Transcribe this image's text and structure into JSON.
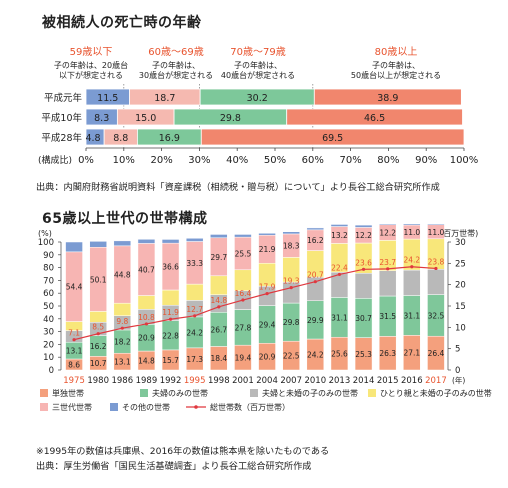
{
  "chart_data": [
    {
      "type": "bar",
      "stacked": "horizontal-100",
      "title": "被相続人の死亡時の年齢",
      "age_groups": [
        {
          "label": "59歳以下",
          "note1": "子の年齢は、20歳台",
          "note2": "以下が想定される",
          "color": "#7b9bd2"
        },
        {
          "label": "60歳～69歳",
          "note1": "子の年齢は、",
          "note2": "30歳台が想定される",
          "color": "#f5b9b0"
        },
        {
          "label": "70歳～79歳",
          "note1": "子の年齢は、",
          "note2": "40歳台が想定される",
          "color": "#7dc89a"
        },
        {
          "label": "80歳以上",
          "note1": "子の年齢は、",
          "note2": "50歳台以上が想定される",
          "color": "#f1866d"
        }
      ],
      "categories": [
        "平成元年",
        "平成10年",
        "平成28年"
      ],
      "series": [
        {
          "name": "59歳以下",
          "values": [
            11.5,
            8.3,
            4.8
          ]
        },
        {
          "name": "60歳～69歳",
          "values": [
            18.7,
            15.0,
            8.8
          ]
        },
        {
          "name": "70歳～79歳",
          "values": [
            30.2,
            29.8,
            16.9
          ]
        },
        {
          "name": "80歳以上",
          "values": [
            38.9,
            46.5,
            69.5
          ]
        }
      ],
      "axis_label": "(構成比)",
      "ticks": [
        "0%",
        "10%",
        "20%",
        "30%",
        "40%",
        "50%",
        "60%",
        "70%",
        "80%",
        "90%",
        "100%"
      ],
      "xlim": [
        0,
        100
      ],
      "source": "出典：内閣府財務省説明資料「資産課税（相続税・贈与税）について」より長谷工総合研究所作成"
    },
    {
      "type": "bar",
      "stacked": "vertical-100-with-line",
      "title": "65歳以上世代の世帯構成",
      "ylabel_left": "(%)",
      "ylabel_right": "(百万世帯)",
      "xunit": "(年)",
      "ylim": [
        0,
        100
      ],
      "ylim_right": [
        0,
        30
      ],
      "left_ticks": [
        "0",
        "10",
        "20",
        "30",
        "40",
        "50",
        "60",
        "70",
        "80",
        "90",
        "100"
      ],
      "right_ticks": [
        "0",
        "5",
        "10",
        "15",
        "20",
        "25",
        "30"
      ],
      "categories": [
        "1975",
        "1980",
        "1986",
        "1989",
        "1992",
        "1995",
        "1998",
        "2001",
        "2004",
        "2007",
        "2010",
        "2013",
        "2014",
        "2015",
        "2016",
        "2017"
      ],
      "highlight_categories": [
        "1975",
        "1995",
        "2017"
      ],
      "highlight_color": "#e8542f",
      "series": [
        {
          "name": "単独世帯",
          "color": "#f4a07d",
          "label_color": "#222222",
          "values": [
            8.6,
            10.7,
            13.1,
            14.8,
            15.7,
            17.3,
            18.4,
            19.4,
            20.9,
            22.5,
            24.2,
            25.6,
            25.3,
            26.3,
            27.1,
            26.4
          ]
        },
        {
          "name": "夫婦のみの世帯",
          "color": "#7fc79a",
          "label_color": "#222222",
          "values": [
            13.1,
            16.2,
            18.2,
            20.9,
            22.8,
            24.2,
            26.7,
            27.8,
            29.4,
            29.8,
            29.9,
            31.1,
            30.7,
            31.5,
            31.1,
            32.5
          ]
        },
        {
          "name": "夫婦と未婚の子のみの世帯",
          "color": "#b9b9b9",
          "label_color": "#222222",
          "values": [
            9.1,
            10.4,
            11.1,
            11.7,
            12.1,
            12.9,
            13.7,
            14.7,
            15.2,
            16.4,
            18.5,
            19.8,
            19.6,
            19.8,
            19.9,
            19.8
          ]
        },
        {
          "name": "ひとり親と未婚の子のみの世帯",
          "color": "#f8e77a",
          "label_color": "#e8542f",
          "values": [
            7.1,
            8.5,
            9.8,
            10.8,
            11.9,
            12.7,
            14.8,
            16.4,
            17.9,
            19.3,
            20.7,
            22.4,
            23.6,
            23.7,
            24.2,
            23.8
          ]
        },
        {
          "name": "三世代世帯",
          "color": "#f7b5b3",
          "label_color": "#222222",
          "values": [
            54.4,
            50.1,
            44.8,
            40.7,
            36.6,
            33.3,
            29.7,
            25.5,
            21.9,
            18.3,
            16.2,
            13.2,
            12.2,
            12.2,
            11.0,
            11.0
          ]
        },
        {
          "name": "その他の世帯",
          "color": "#7b9bd2",
          "label_color": "#222222",
          "values": [
            7.7,
            4.6,
            3.9,
            3.2,
            2.9,
            2.5,
            2.6,
            2.1,
            1.5,
            1.7,
            1.5,
            1.6,
            1.8,
            0.9,
            1.3,
            1.3
          ]
        }
      ],
      "line": {
        "name": "総世帯数（百万世帯）",
        "color": "#e0383f",
        "values": [
          7.1,
          8.5,
          9.8,
          10.8,
          11.9,
          12.7,
          14.8,
          16.4,
          17.9,
          19.3,
          20.7,
          22.4,
          23.6,
          23.7,
          24.2,
          23.8
        ]
      },
      "note": "※1995年の数値は兵庫県、2016年の数値は熊本県を除いたものである",
      "source": "出典：厚生労働省「国民生活基礎調査」より長谷工総合研究所作成"
    }
  ]
}
